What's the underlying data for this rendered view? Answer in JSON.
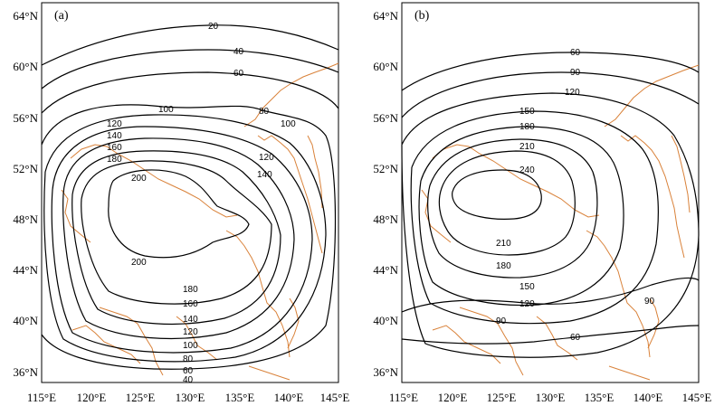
{
  "panels": [
    {
      "label": "(a)",
      "lat_ticks": [
        "64°N",
        "60°N",
        "56°N",
        "52°N",
        "48°N",
        "44°N",
        "40°N",
        "36°N"
      ],
      "lon_ticks": [
        "115°E",
        "120°E",
        "125°E",
        "130°E",
        "135°E",
        "140°E",
        "145°E"
      ],
      "contour_labels": [
        "20",
        "40",
        "60",
        "80",
        "100",
        "100",
        "120",
        "120",
        "140",
        "140",
        "160",
        "180",
        "200",
        "200",
        "180",
        "160",
        "140",
        "120",
        "100",
        "80",
        "60",
        "40"
      ]
    },
    {
      "label": "(b)",
      "lat_ticks": [
        "64°N",
        "60°N",
        "56°N",
        "52°N",
        "48°N",
        "44°N",
        "40°N",
        "36°N"
      ],
      "lon_ticks": [
        "115°E",
        "120°E",
        "125°E",
        "130°E",
        "135°E",
        "140°E",
        "145°E"
      ],
      "contour_labels": [
        "60",
        "90",
        "120",
        "150",
        "180",
        "210",
        "240",
        "210",
        "180",
        "150",
        "120",
        "90",
        "90",
        "60"
      ]
    }
  ],
  "colors": {
    "contour": "#000000",
    "coastline": "#d9823a"
  }
}
